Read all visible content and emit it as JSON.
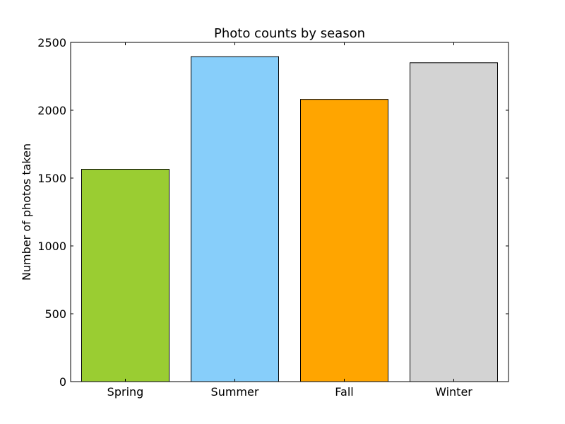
{
  "chart_data": {
    "type": "bar",
    "title": "Photo counts by season",
    "xlabel": "",
    "ylabel": "Number of photos taken",
    "categories": [
      "Spring",
      "Summer",
      "Fall",
      "Winter"
    ],
    "values": [
      1565,
      2395,
      2080,
      2350
    ],
    "colors": [
      "#9acd32",
      "#87cefa",
      "#ffa500",
      "#d3d3d3"
    ],
    "ylim": [
      0,
      2500
    ],
    "yticks": [
      0,
      500,
      1000,
      1500,
      2000,
      2500
    ],
    "ytick_labels": [
      "0",
      "500",
      "1000",
      "1500",
      "2000",
      "2500"
    ],
    "grid": false,
    "legend": "none"
  }
}
